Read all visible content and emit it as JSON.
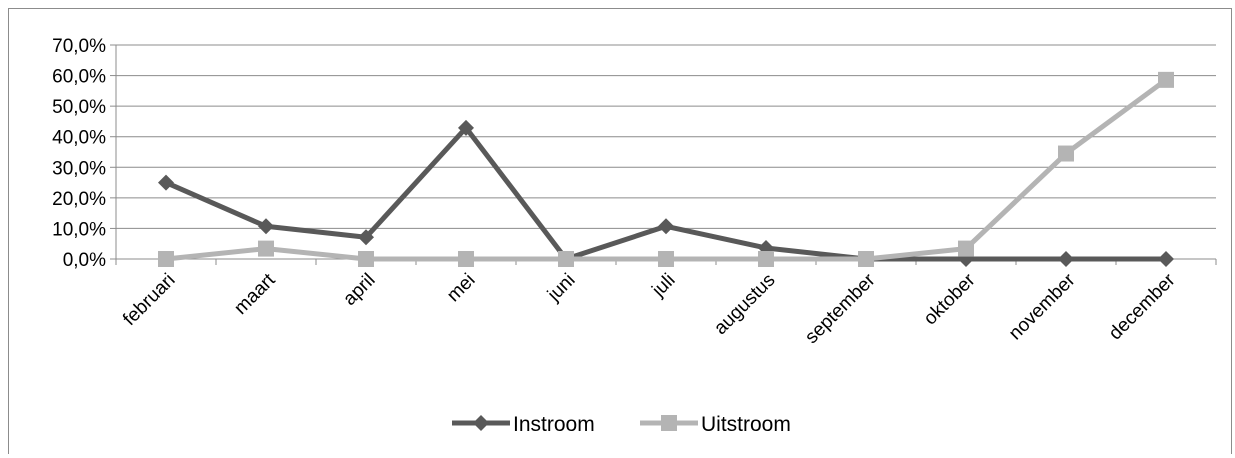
{
  "chart_data": {
    "type": "line",
    "categories": [
      "februari",
      "maart",
      "april",
      "mei",
      "juni",
      "juli",
      "augustus",
      "september",
      "oktober",
      "november",
      "december"
    ],
    "series": [
      {
        "name": "Instroom",
        "color": "#595959",
        "marker": "diamond",
        "values": [
          25.0,
          10.7,
          7.1,
          42.9,
          0.0,
          10.7,
          3.6,
          0.0,
          0.0,
          0.0,
          0.0
        ]
      },
      {
        "name": "Uitstroom",
        "color": "#b4b4b4",
        "marker": "square",
        "values": [
          0.0,
          3.4,
          0.0,
          0.0,
          0.0,
          0.0,
          0.0,
          0.0,
          3.4,
          34.5,
          58.6
        ]
      }
    ],
    "ylim": [
      0,
      70
    ],
    "yticks": [
      0,
      10,
      20,
      30,
      40,
      50,
      60,
      70
    ],
    "ytick_labels": [
      "0,0%",
      "10,0%",
      "20,0%",
      "30,0%",
      "40,0%",
      "50,0%",
      "60,0%",
      "70,0%"
    ],
    "grid": true,
    "legend_position": "bottom"
  }
}
